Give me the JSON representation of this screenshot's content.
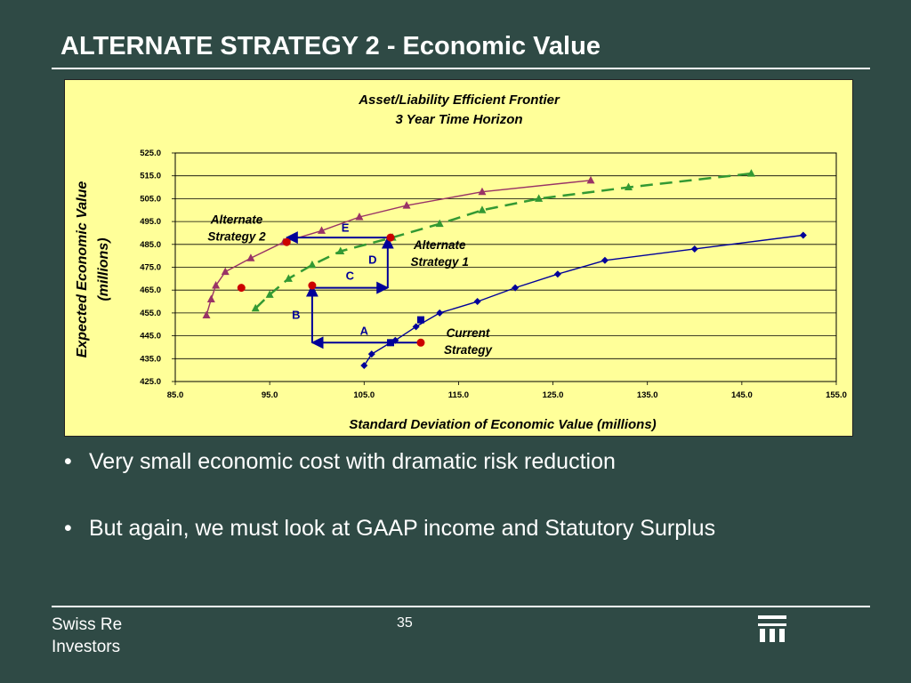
{
  "slide": {
    "title": "ALTERNATE STRATEGY 2 - Economic Value",
    "bullets": [
      "Very small economic cost with dramatic risk reduction",
      "But again, we must look at GAAP income and Statutory Surplus"
    ],
    "footer": {
      "company_line1": "Swiss Re",
      "company_line2": "Investors",
      "page_number": "35"
    },
    "logo_icon": "swiss-re-logo-icon"
  },
  "chart_data": {
    "type": "scatter",
    "title": "Asset/Liability Efficient Frontier",
    "subtitle": "3 Year Time Horizon",
    "xlabel": "Standard Deviation of Economic Value (millions)",
    "ylabel": "Expected Economic Value",
    "ylabel_unit": "(millions)",
    "xlim": [
      85.0,
      155.0
    ],
    "ylim": [
      425.0,
      525.0
    ],
    "xticks": [
      "85.0",
      "95.0",
      "105.0",
      "115.0",
      "125.0",
      "135.0",
      "145.0",
      "155.0"
    ],
    "yticks": [
      "425.0",
      "435.0",
      "445.0",
      "455.0",
      "465.0",
      "475.0",
      "485.0",
      "495.0",
      "505.0",
      "515.0",
      "525.0"
    ],
    "grid": true,
    "series": [
      {
        "marker": "diamond",
        "color": "#000099",
        "dash": false,
        "points": [
          [
            105.0,
            432
          ],
          [
            105.8,
            437
          ],
          [
            107.8,
            442
          ],
          [
            108.3,
            443
          ],
          [
            110.5,
            449
          ],
          [
            113.0,
            455
          ],
          [
            117.0,
            460
          ],
          [
            121.0,
            466
          ],
          [
            125.5,
            472
          ],
          [
            130.5,
            478
          ],
          [
            140.0,
            483
          ],
          [
            151.5,
            489
          ]
        ]
      },
      {
        "marker": "triangle",
        "color": "#339933",
        "dash": true,
        "points": [
          [
            93.5,
            457
          ],
          [
            95.0,
            463
          ],
          [
            97.0,
            470
          ],
          [
            99.5,
            476
          ],
          [
            102.5,
            482
          ],
          [
            108.0,
            488
          ],
          [
            113.0,
            494
          ],
          [
            117.5,
            500
          ],
          [
            123.5,
            505
          ],
          [
            133.0,
            510
          ],
          [
            146.0,
            516
          ]
        ]
      },
      {
        "marker": "triangle",
        "color": "#993366",
        "dash": false,
        "points": [
          [
            88.3,
            454
          ],
          [
            88.8,
            461
          ],
          [
            89.3,
            467
          ],
          [
            90.3,
            473
          ],
          [
            93.0,
            479
          ],
          [
            96.5,
            486
          ],
          [
            100.5,
            491
          ],
          [
            104.5,
            497
          ],
          [
            109.5,
            502
          ],
          [
            117.5,
            508
          ],
          [
            129.0,
            513
          ]
        ]
      }
    ],
    "highlight_points": [
      {
        "x": 111.0,
        "y": 442,
        "color": "#cc0000"
      },
      {
        "x": 99.5,
        "y": 467,
        "color": "#cc0000"
      },
      {
        "x": 92.0,
        "y": 466,
        "color": "#cc0000"
      },
      {
        "x": 96.8,
        "y": 486,
        "color": "#cc0000"
      },
      {
        "x": 107.8,
        "y": 488,
        "color": "#cc0000"
      }
    ],
    "path_markers": [
      {
        "x": 107.8,
        "y": 442,
        "color": "#000099"
      },
      {
        "x": 111.0,
        "y": 452,
        "color": "#000099"
      }
    ],
    "arrows": [
      {
        "name": "a",
        "from": [
          111.0,
          442
        ],
        "to": [
          99.5,
          442
        ]
      },
      {
        "name": "b",
        "from": [
          99.5,
          442
        ],
        "to": [
          99.5,
          467
        ]
      },
      {
        "name": "c",
        "from": [
          99.5,
          466
        ],
        "to": [
          107.5,
          466
        ]
      },
      {
        "name": "d",
        "from": [
          107.5,
          466
        ],
        "to": [
          107.5,
          488
        ]
      },
      {
        "name": "e",
        "from": [
          107.5,
          488
        ],
        "to": [
          96.8,
          488
        ]
      }
    ],
    "arrow_labels": [
      {
        "text": "A",
        "x": 105.0,
        "y": 445.5
      },
      {
        "text": "B",
        "x": 97.8,
        "y": 452.5
      },
      {
        "text": "C",
        "x": 103.5,
        "y": 469.5
      },
      {
        "text": "D",
        "x": 105.9,
        "y": 476.5
      },
      {
        "text": "E",
        "x": 103.0,
        "y": 490.5
      }
    ],
    "annotations": [
      {
        "lines": [
          "Alternate",
          "Strategy 2"
        ],
        "x": 91.5,
        "y": 494
      },
      {
        "lines": [
          "Alternate",
          "Strategy 1"
        ],
        "x": 113.0,
        "y": 483
      },
      {
        "lines": [
          "Current",
          "Strategy"
        ],
        "x": 116.0,
        "y": 444.5
      }
    ]
  }
}
